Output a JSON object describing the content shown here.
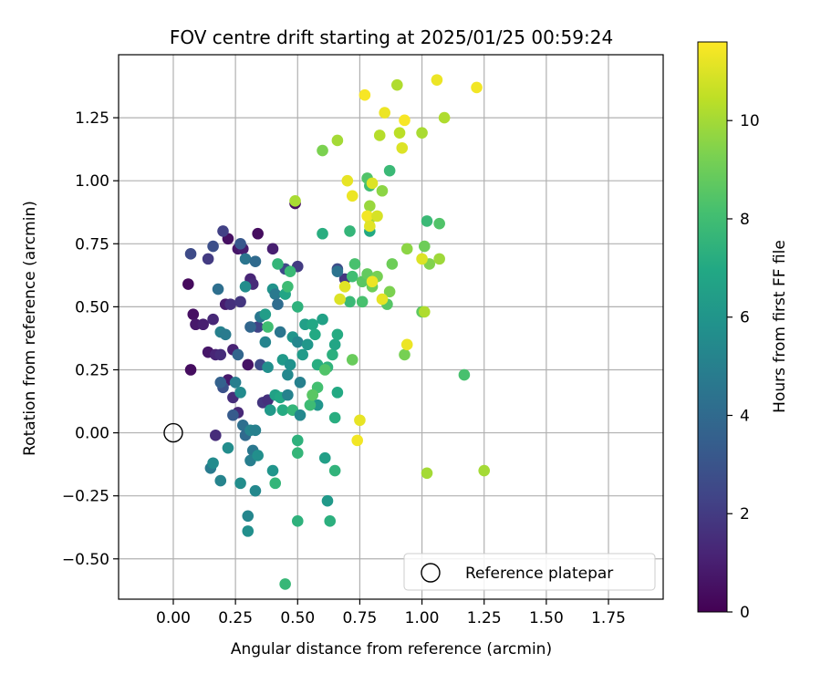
{
  "chart_data": {
    "type": "scatter",
    "title": "FOV centre drift starting at 2025/01/25 00:59:24",
    "xlabel": "Angular distance from reference (arcmin)",
    "ylabel": "Rotation from reference (arcmin)",
    "xlim": [
      -0.22,
      1.97
    ],
    "ylim": [
      -0.66,
      1.5
    ],
    "x_ticks": [
      "0.00",
      "0.25",
      "0.50",
      "0.75",
      "1.00",
      "1.25",
      "1.50",
      "1.75"
    ],
    "y_ticks": [
      "−0.50",
      "−0.25",
      "0.00",
      "0.25",
      "0.50",
      "0.75",
      "1.00",
      "1.25"
    ],
    "grid": true,
    "legend": {
      "position": "lower-right",
      "entries": [
        "Reference platepar"
      ]
    },
    "reference_point": {
      "x": 0.0,
      "y": 0.0
    },
    "colorbar": {
      "label": "Hours from first FF file",
      "min": 0,
      "max": 11.6,
      "ticks": [
        "0",
        "2",
        "4",
        "6",
        "8",
        "10"
      ],
      "colormap": "viridis"
    },
    "series": [
      {
        "points": [
          {
            "x": 0.06,
            "y": 0.59,
            "h": 0.3
          },
          {
            "x": 0.08,
            "y": 0.47,
            "h": 0.5
          },
          {
            "x": 0.07,
            "y": 0.25,
            "h": 0.4
          },
          {
            "x": 0.09,
            "y": 0.43,
            "h": 0.8
          },
          {
            "x": 0.12,
            "y": 0.43,
            "h": 1.0
          },
          {
            "x": 0.14,
            "y": 0.32,
            "h": 0.7
          },
          {
            "x": 0.16,
            "y": 0.45,
            "h": 1.3
          },
          {
            "x": 0.17,
            "y": 0.31,
            "h": 1.2
          },
          {
            "x": 0.19,
            "y": 0.31,
            "h": 1.5
          },
          {
            "x": 0.21,
            "y": 0.51,
            "h": 0.9
          },
          {
            "x": 0.23,
            "y": 0.51,
            "h": 1.6
          },
          {
            "x": 0.24,
            "y": 0.33,
            "h": 1.1
          },
          {
            "x": 0.27,
            "y": 0.52,
            "h": 1.8
          },
          {
            "x": 0.3,
            "y": 0.27,
            "h": 0.6
          },
          {
            "x": 0.22,
            "y": 0.77,
            "h": 0.5
          },
          {
            "x": 0.26,
            "y": 0.73,
            "h": 0.7
          },
          {
            "x": 0.28,
            "y": 0.73,
            "h": 0.9
          },
          {
            "x": 0.34,
            "y": 0.79,
            "h": 0.4
          },
          {
            "x": 0.31,
            "y": 0.61,
            "h": 1.2
          },
          {
            "x": 0.32,
            "y": 0.59,
            "h": 1.4
          },
          {
            "x": 0.34,
            "y": 0.42,
            "h": 2.3
          },
          {
            "x": 0.2,
            "y": 0.8,
            "h": 2.2
          },
          {
            "x": 0.07,
            "y": 0.71,
            "h": 2.6
          },
          {
            "x": 0.14,
            "y": 0.69,
            "h": 2.0
          },
          {
            "x": 0.16,
            "y": 0.74,
            "h": 2.8
          },
          {
            "x": 0.22,
            "y": 0.21,
            "h": 0.8
          },
          {
            "x": 0.24,
            "y": 0.14,
            "h": 1.5
          },
          {
            "x": 0.26,
            "y": 0.08,
            "h": 1.3
          },
          {
            "x": 0.17,
            "y": -0.01,
            "h": 1.5
          },
          {
            "x": 0.2,
            "y": 0.18,
            "h": 2.9
          },
          {
            "x": 0.19,
            "y": 0.2,
            "h": 3.6
          },
          {
            "x": 0.24,
            "y": 0.07,
            "h": 3.3
          },
          {
            "x": 0.26,
            "y": 0.31,
            "h": 3.8
          },
          {
            "x": 0.27,
            "y": 0.75,
            "h": 3.2
          },
          {
            "x": 0.29,
            "y": 0.69,
            "h": 4.5
          },
          {
            "x": 0.33,
            "y": 0.68,
            "h": 4.0
          },
          {
            "x": 0.35,
            "y": 0.27,
            "h": 2.6
          },
          {
            "x": 0.36,
            "y": 0.12,
            "h": 1.8
          },
          {
            "x": 0.38,
            "y": 0.13,
            "h": 1.6
          },
          {
            "x": 0.4,
            "y": 0.73,
            "h": 1.0
          },
          {
            "x": 0.45,
            "y": 0.65,
            "h": 2.5
          },
          {
            "x": 0.49,
            "y": 0.91,
            "h": 0.5
          },
          {
            "x": 0.5,
            "y": 0.66,
            "h": 2.0
          },
          {
            "x": 0.66,
            "y": 0.65,
            "h": 2.7
          },
          {
            "x": 0.69,
            "y": 0.61,
            "h": 1.9
          },
          {
            "x": 0.66,
            "y": 0.64,
            "h": 4.4
          },
          {
            "x": 0.18,
            "y": 0.57,
            "h": 4.2
          },
          {
            "x": 0.19,
            "y": 0.4,
            "h": 5.0
          },
          {
            "x": 0.21,
            "y": 0.39,
            "h": 4.8
          },
          {
            "x": 0.25,
            "y": 0.2,
            "h": 4.9
          },
          {
            "x": 0.27,
            "y": 0.16,
            "h": 5.5
          },
          {
            "x": 0.29,
            "y": 0.58,
            "h": 5.6
          },
          {
            "x": 0.31,
            "y": 0.42,
            "h": 3.8
          },
          {
            "x": 0.35,
            "y": 0.46,
            "h": 4.6
          },
          {
            "x": 0.37,
            "y": 0.36,
            "h": 5.2
          },
          {
            "x": 0.37,
            "y": 0.47,
            "h": 6.4
          },
          {
            "x": 0.38,
            "y": 0.26,
            "h": 5.7
          },
          {
            "x": 0.4,
            "y": 0.57,
            "h": 5.9
          },
          {
            "x": 0.41,
            "y": 0.55,
            "h": 4.7
          },
          {
            "x": 0.42,
            "y": 0.51,
            "h": 4.1
          },
          {
            "x": 0.43,
            "y": 0.4,
            "h": 4.5
          },
          {
            "x": 0.44,
            "y": 0.29,
            "h": 6.2
          },
          {
            "x": 0.45,
            "y": 0.55,
            "h": 6.8
          },
          {
            "x": 0.46,
            "y": 0.23,
            "h": 5.4
          },
          {
            "x": 0.47,
            "y": 0.27,
            "h": 5.8
          },
          {
            "x": 0.48,
            "y": 0.38,
            "h": 6.0
          },
          {
            "x": 0.5,
            "y": 0.36,
            "h": 5.3
          },
          {
            "x": 0.51,
            "y": 0.2,
            "h": 5.0
          },
          {
            "x": 0.52,
            "y": 0.31,
            "h": 6.3
          },
          {
            "x": 0.53,
            "y": 0.43,
            "h": 6.5
          },
          {
            "x": 0.54,
            "y": 0.35,
            "h": 6.1
          },
          {
            "x": 0.56,
            "y": 0.43,
            "h": 6.9
          },
          {
            "x": 0.57,
            "y": 0.39,
            "h": 7.0
          },
          {
            "x": 0.58,
            "y": 0.27,
            "h": 7.2
          },
          {
            "x": 0.6,
            "y": 0.45,
            "h": 6.6
          },
          {
            "x": 0.62,
            "y": 0.26,
            "h": 7.5
          },
          {
            "x": 0.64,
            "y": 0.31,
            "h": 7.3
          },
          {
            "x": 0.65,
            "y": 0.35,
            "h": 6.8
          },
          {
            "x": 0.66,
            "y": 0.39,
            "h": 7.1
          },
          {
            "x": 0.5,
            "y": 0.5,
            "h": 7.4
          },
          {
            "x": 0.47,
            "y": 0.64,
            "h": 7.8
          },
          {
            "x": 0.42,
            "y": 0.67,
            "h": 7.6
          },
          {
            "x": 0.46,
            "y": 0.58,
            "h": 7.9
          },
          {
            "x": 0.38,
            "y": 0.42,
            "h": 8.0
          },
          {
            "x": 0.39,
            "y": 0.09,
            "h": 6.2
          },
          {
            "x": 0.41,
            "y": 0.15,
            "h": 6.6
          },
          {
            "x": 0.43,
            "y": 0.14,
            "h": 6.9
          },
          {
            "x": 0.44,
            "y": 0.09,
            "h": 7.1
          },
          {
            "x": 0.46,
            "y": 0.15,
            "h": 5.1
          },
          {
            "x": 0.48,
            "y": 0.09,
            "h": 7.6
          },
          {
            "x": 0.51,
            "y": 0.07,
            "h": 5.4
          },
          {
            "x": 0.56,
            "y": 0.15,
            "h": 7.8
          },
          {
            "x": 0.58,
            "y": 0.11,
            "h": 6.0
          },
          {
            "x": 0.66,
            "y": 0.16,
            "h": 7.0
          },
          {
            "x": 0.65,
            "y": 0.06,
            "h": 7.2
          },
          {
            "x": 0.55,
            "y": 0.11,
            "h": 7.9
          },
          {
            "x": 0.58,
            "y": 0.18,
            "h": 8.1
          },
          {
            "x": 0.61,
            "y": 0.25,
            "h": 8.4
          },
          {
            "x": 0.56,
            "y": 0.15,
            "h": 8.6
          },
          {
            "x": 0.28,
            "y": 0.03,
            "h": 4.2
          },
          {
            "x": 0.29,
            "y": -0.01,
            "h": 4.0
          },
          {
            "x": 0.31,
            "y": 0.01,
            "h": 5.2
          },
          {
            "x": 0.33,
            "y": 0.01,
            "h": 5.0
          },
          {
            "x": 0.32,
            "y": -0.07,
            "h": 4.6
          },
          {
            "x": 0.31,
            "y": -0.11,
            "h": 4.9
          },
          {
            "x": 0.34,
            "y": -0.09,
            "h": 5.7
          },
          {
            "x": 0.22,
            "y": -0.06,
            "h": 5.6
          },
          {
            "x": 0.15,
            "y": -0.14,
            "h": 4.8
          },
          {
            "x": 0.16,
            "y": -0.12,
            "h": 5.5
          },
          {
            "x": 0.19,
            "y": -0.19,
            "h": 5.2
          },
          {
            "x": 0.27,
            "y": -0.2,
            "h": 5.6
          },
          {
            "x": 0.33,
            "y": -0.23,
            "h": 5.4
          },
          {
            "x": 0.4,
            "y": -0.15,
            "h": 6.0
          },
          {
            "x": 0.41,
            "y": -0.2,
            "h": 7.6
          },
          {
            "x": 0.3,
            "y": -0.33,
            "h": 5.3
          },
          {
            "x": 0.3,
            "y": -0.39,
            "h": 5.7
          },
          {
            "x": 0.45,
            "y": -0.6,
            "h": 7.7
          },
          {
            "x": 0.5,
            "y": -0.35,
            "h": 7.4
          },
          {
            "x": 0.5,
            "y": -0.08,
            "h": 7.6
          },
          {
            "x": 0.5,
            "y": -0.03,
            "h": 7.4
          },
          {
            "x": 0.61,
            "y": -0.1,
            "h": 6.5
          },
          {
            "x": 0.62,
            "y": -0.27,
            "h": 6.2
          },
          {
            "x": 0.63,
            "y": -0.35,
            "h": 7.3
          },
          {
            "x": 0.65,
            "y": -0.15,
            "h": 7.5
          },
          {
            "x": 0.6,
            "y": 0.79,
            "h": 7.2
          },
          {
            "x": 0.71,
            "y": 0.8,
            "h": 7.6
          },
          {
            "x": 0.71,
            "y": 0.52,
            "h": 7.8
          },
          {
            "x": 0.72,
            "y": 0.62,
            "h": 8.0
          },
          {
            "x": 0.73,
            "y": 0.67,
            "h": 8.2
          },
          {
            "x": 0.76,
            "y": 0.52,
            "h": 8.2
          },
          {
            "x": 0.76,
            "y": 0.6,
            "h": 8.6
          },
          {
            "x": 0.78,
            "y": 0.63,
            "h": 8.8
          },
          {
            "x": 0.79,
            "y": 0.8,
            "h": 7.0
          },
          {
            "x": 0.79,
            "y": 0.98,
            "h": 8.0
          },
          {
            "x": 0.78,
            "y": 1.01,
            "h": 8.4
          },
          {
            "x": 0.8,
            "y": 0.58,
            "h": 9.0
          },
          {
            "x": 0.82,
            "y": 0.62,
            "h": 9.2
          },
          {
            "x": 0.86,
            "y": 0.51,
            "h": 8.5
          },
          {
            "x": 0.87,
            "y": 0.56,
            "h": 9.3
          },
          {
            "x": 0.88,
            "y": 0.67,
            "h": 9.0
          },
          {
            "x": 0.87,
            "y": 1.04,
            "h": 7.8
          },
          {
            "x": 0.84,
            "y": 0.96,
            "h": 9.6
          },
          {
            "x": 0.79,
            "y": 0.9,
            "h": 9.8
          },
          {
            "x": 0.79,
            "y": 0.85,
            "h": 9.9
          },
          {
            "x": 0.72,
            "y": 0.29,
            "h": 8.9
          },
          {
            "x": 0.93,
            "y": 0.31,
            "h": 9.2
          },
          {
            "x": 0.94,
            "y": 0.73,
            "h": 9.6
          },
          {
            "x": 1.0,
            "y": 0.48,
            "h": 8.7
          },
          {
            "x": 1.01,
            "y": 0.48,
            "h": 10.2
          },
          {
            "x": 1.01,
            "y": 0.74,
            "h": 9.0
          },
          {
            "x": 1.02,
            "y": 0.84,
            "h": 7.8
          },
          {
            "x": 1.03,
            "y": 0.67,
            "h": 9.4
          },
          {
            "x": 1.07,
            "y": 0.69,
            "h": 9.9
          },
          {
            "x": 1.07,
            "y": 0.83,
            "h": 8.4
          },
          {
            "x": 1.17,
            "y": 0.23,
            "h": 8.2
          },
          {
            "x": 1.02,
            "y": -0.16,
            "h": 10.0
          },
          {
            "x": 1.25,
            "y": -0.15,
            "h": 10.0
          },
          {
            "x": 0.6,
            "y": 1.12,
            "h": 9.3
          },
          {
            "x": 0.66,
            "y": 1.16,
            "h": 10.0
          },
          {
            "x": 0.49,
            "y": 0.92,
            "h": 10.1
          },
          {
            "x": 0.83,
            "y": 1.18,
            "h": 10.3
          },
          {
            "x": 0.9,
            "y": 1.38,
            "h": 10.2
          },
          {
            "x": 0.91,
            "y": 1.19,
            "h": 10.4
          },
          {
            "x": 1.0,
            "y": 1.19,
            "h": 10.1
          },
          {
            "x": 1.09,
            "y": 1.25,
            "h": 10.2
          },
          {
            "x": 0.92,
            "y": 1.13,
            "h": 11.0
          },
          {
            "x": 0.93,
            "y": 1.24,
            "h": 11.5
          },
          {
            "x": 0.85,
            "y": 1.27,
            "h": 11.3
          },
          {
            "x": 0.77,
            "y": 1.34,
            "h": 11.5
          },
          {
            "x": 1.06,
            "y": 1.4,
            "h": 11.3
          },
          {
            "x": 1.22,
            "y": 1.37,
            "h": 11.4
          },
          {
            "x": 0.7,
            "y": 1.0,
            "h": 11.2
          },
          {
            "x": 0.72,
            "y": 0.94,
            "h": 11.3
          },
          {
            "x": 0.8,
            "y": 0.99,
            "h": 11.0
          },
          {
            "x": 0.78,
            "y": 0.86,
            "h": 11.4
          },
          {
            "x": 0.82,
            "y": 0.86,
            "h": 10.9
          },
          {
            "x": 0.79,
            "y": 0.82,
            "h": 11.1
          },
          {
            "x": 0.8,
            "y": 0.6,
            "h": 11.3
          },
          {
            "x": 0.69,
            "y": 0.58,
            "h": 11.1
          },
          {
            "x": 0.67,
            "y": 0.53,
            "h": 11.0
          },
          {
            "x": 0.84,
            "y": 0.53,
            "h": 11.2
          },
          {
            "x": 0.94,
            "y": 0.35,
            "h": 11.3
          },
          {
            "x": 1.0,
            "y": 0.69,
            "h": 11.0
          },
          {
            "x": 0.75,
            "y": 0.05,
            "h": 11.2
          },
          {
            "x": 0.74,
            "y": -0.03,
            "h": 11.4
          }
        ]
      }
    ]
  }
}
